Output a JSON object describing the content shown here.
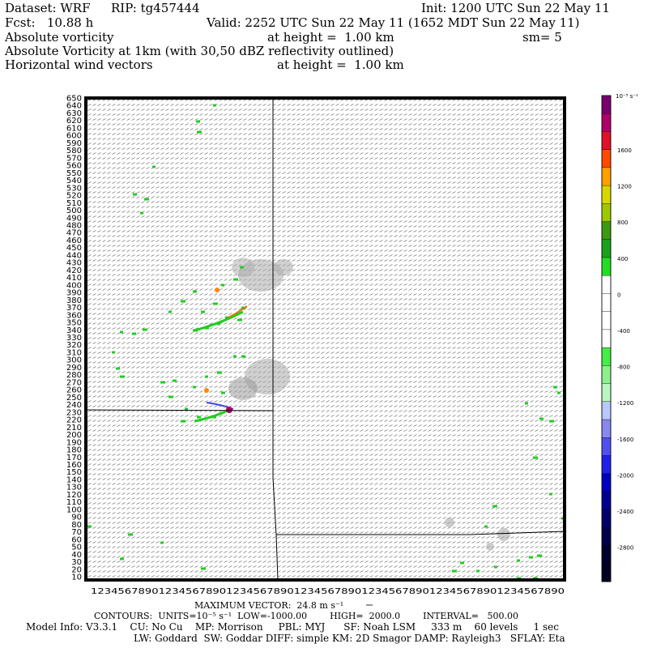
{
  "header": {
    "dataset": "Dataset: WRF",
    "rip": "RIP: tg457444",
    "init": "Init: 1200 UTC Sun 22 May 11",
    "fcst": "Fcst:   10.88 h",
    "valid": "Valid: 2252 UTC Sun 22 May 11 (1652 MDT Sun 22 May 11)",
    "line3_left": "Absolute vorticity",
    "line3_mid": "at height =  1.00 km",
    "line3_right": "sm= 5",
    "line4": "Absolute Vorticity at 1km (with 30,50 dBZ reflectivity outlined)",
    "line5_left": "Horizontal wind vectors",
    "line5_mid": "at height =  1.00 km"
  },
  "footer": {
    "max_vector": "MAXIMUM VECTOR:  24.8 m s⁻¹",
    "contours": "CONTOURS:  UNITS=10⁻⁵ s⁻¹  LOW=-1000.00        HIGH=  2000.0        INTERVAL=   500.00",
    "model_info": "Model Info: V3.3.1    CU: No Cu    MP: Morrison     PBL: MYJ      SF: Noah LSM     333 m    60 levels     1 sec",
    "model_info2": "LW: Goddard  SW: Goddar DIFF: simple KM: 2D Smagor DAMP: Rayleigh3   SFLAY: Eta"
  },
  "colorbar": {
    "units": "10⁻⁵ s⁻¹",
    "labels": [
      "1600",
      "1200",
      "800",
      "400",
      "0",
      "-400",
      "-800",
      "-1200",
      "-1600",
      "-2000",
      "-2400",
      "-2800"
    ],
    "colors": [
      "#7a0070",
      "#b0006a",
      "#e0102a",
      "#ff4a00",
      "#ffa000",
      "#d8d800",
      "#9ec800",
      "#3c9a10",
      "#1aa01a",
      "#22dd22",
      "#ffffff",
      "#ffffff",
      "#ffffff",
      "#ffffff",
      "#44ee44",
      "#8df08d",
      "#b8f8c0",
      "#b8c8ff",
      "#8888ee",
      "#5050f0",
      "#2020e8",
      "#0000c0",
      "#000090",
      "#00006a",
      "#00004a",
      "#000030",
      "#000020"
    ]
  },
  "chart_data": {
    "type": "heatmap",
    "title": "Absolute vorticity",
    "y_ticks": [
      650,
      640,
      630,
      620,
      610,
      600,
      590,
      580,
      570,
      560,
      550,
      540,
      530,
      520,
      510,
      500,
      490,
      480,
      470,
      460,
      450,
      440,
      430,
      420,
      410,
      400,
      390,
      380,
      370,
      360,
      350,
      340,
      330,
      320,
      310,
      300,
      290,
      280,
      270,
      260,
      250,
      240,
      230,
      220,
      210,
      200,
      190,
      180,
      170,
      160,
      150,
      140,
      130,
      120,
      110,
      100,
      90,
      80,
      70,
      60,
      50,
      40,
      30,
      20,
      10
    ],
    "ylim": [
      10,
      650
    ],
    "x_axis_label": "1234567890123456789012345678901234567890123456789012345678901234567890",
    "contours_units": "10^-5 s^-1",
    "contour_low": -1000.0,
    "contour_high": 2000.0,
    "contour_interval": 500.0,
    "max_vector_m_s": 24.8,
    "colorbar_levels": [
      1600,
      1200,
      800,
      400,
      0,
      -400,
      -800,
      -1200,
      -1600,
      -2000,
      -2400,
      -2800
    ]
  }
}
